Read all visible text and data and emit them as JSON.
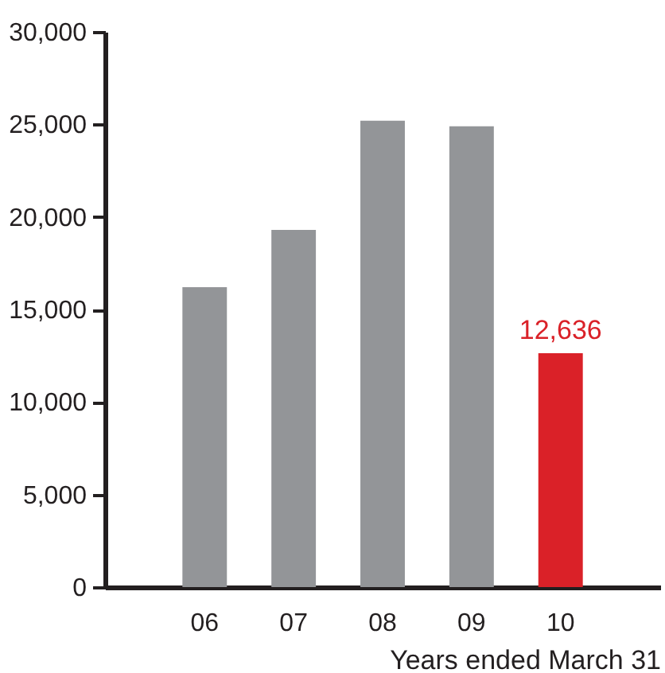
{
  "chart_data": {
    "type": "bar",
    "xlabel": "Years ended March 31",
    "categories": [
      "06",
      "07",
      "08",
      "09",
      "10"
    ],
    "values": [
      16200,
      19300,
      25200,
      24900,
      12636
    ],
    "colors": [
      "#939598",
      "#939598",
      "#939598",
      "#939598",
      "#da2128"
    ],
    "value_labels": [
      null,
      null,
      null,
      null,
      "12,636"
    ],
    "ylim": [
      0,
      30000
    ],
    "yticks": [
      0,
      {
        "value": 5000,
        "label": "5,000"
      },
      {
        "value": 10000,
        "label": "10,000"
      },
      {
        "value": 15000,
        "label": "15,000"
      },
      {
        "value": 20000,
        "label": "20,000"
      },
      {
        "value": 25000,
        "label": "25,000"
      },
      {
        "value": 30000,
        "label": "30,000"
      }
    ],
    "grid": false
  }
}
